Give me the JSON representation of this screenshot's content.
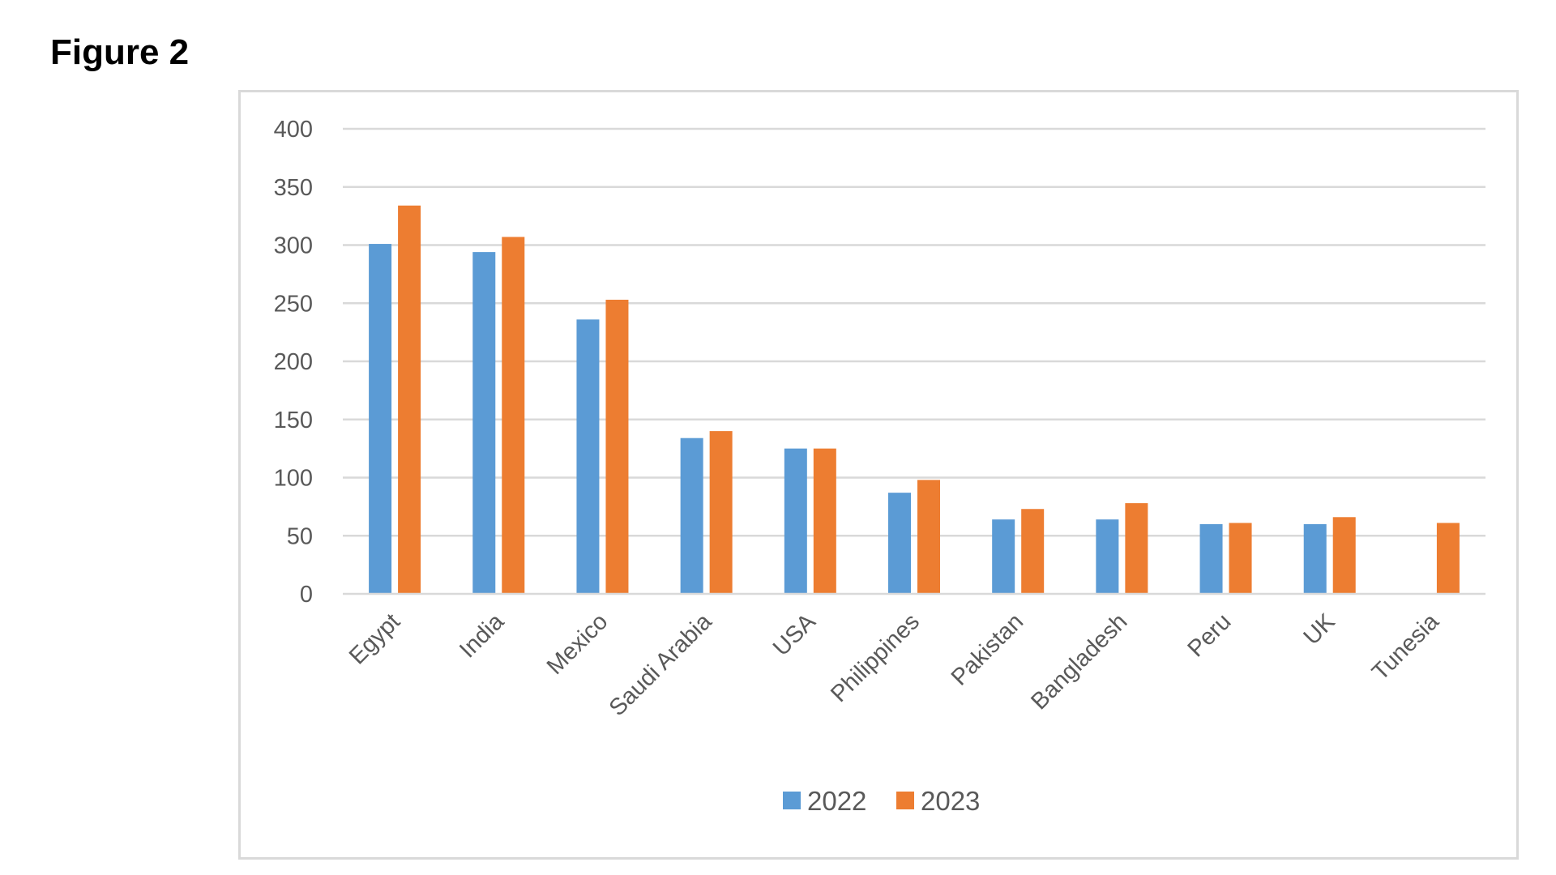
{
  "figure": {
    "heading": "Figure 2"
  },
  "colors": {
    "series_2022": "#5b9bd5",
    "series_2023": "#ed7d31",
    "gridline": "#d9d9d9",
    "text": "#595959",
    "frame": "#d9d9d9"
  },
  "chart_data": {
    "type": "bar",
    "title": "",
    "xlabel": "",
    "ylabel": "",
    "ylim": [
      0,
      400
    ],
    "yticks": [
      0,
      50,
      100,
      150,
      200,
      250,
      300,
      350,
      400
    ],
    "grid": true,
    "legend_position": "bottom",
    "categories": [
      "Egypt",
      "India",
      "Mexico",
      "Saudi Arabia",
      "USA",
      "Philippines",
      "Pakistan",
      "Bangladesh",
      "Peru",
      "UK",
      "Tunesia"
    ],
    "series": [
      {
        "name": "2022",
        "color": "#5b9bd5",
        "values": [
          301,
          294,
          236,
          134,
          125,
          87,
          64,
          64,
          60,
          60,
          null
        ]
      },
      {
        "name": "2023",
        "color": "#ed7d31",
        "values": [
          334,
          307,
          253,
          140,
          125,
          98,
          73,
          78,
          61,
          66,
          61
        ]
      }
    ]
  }
}
